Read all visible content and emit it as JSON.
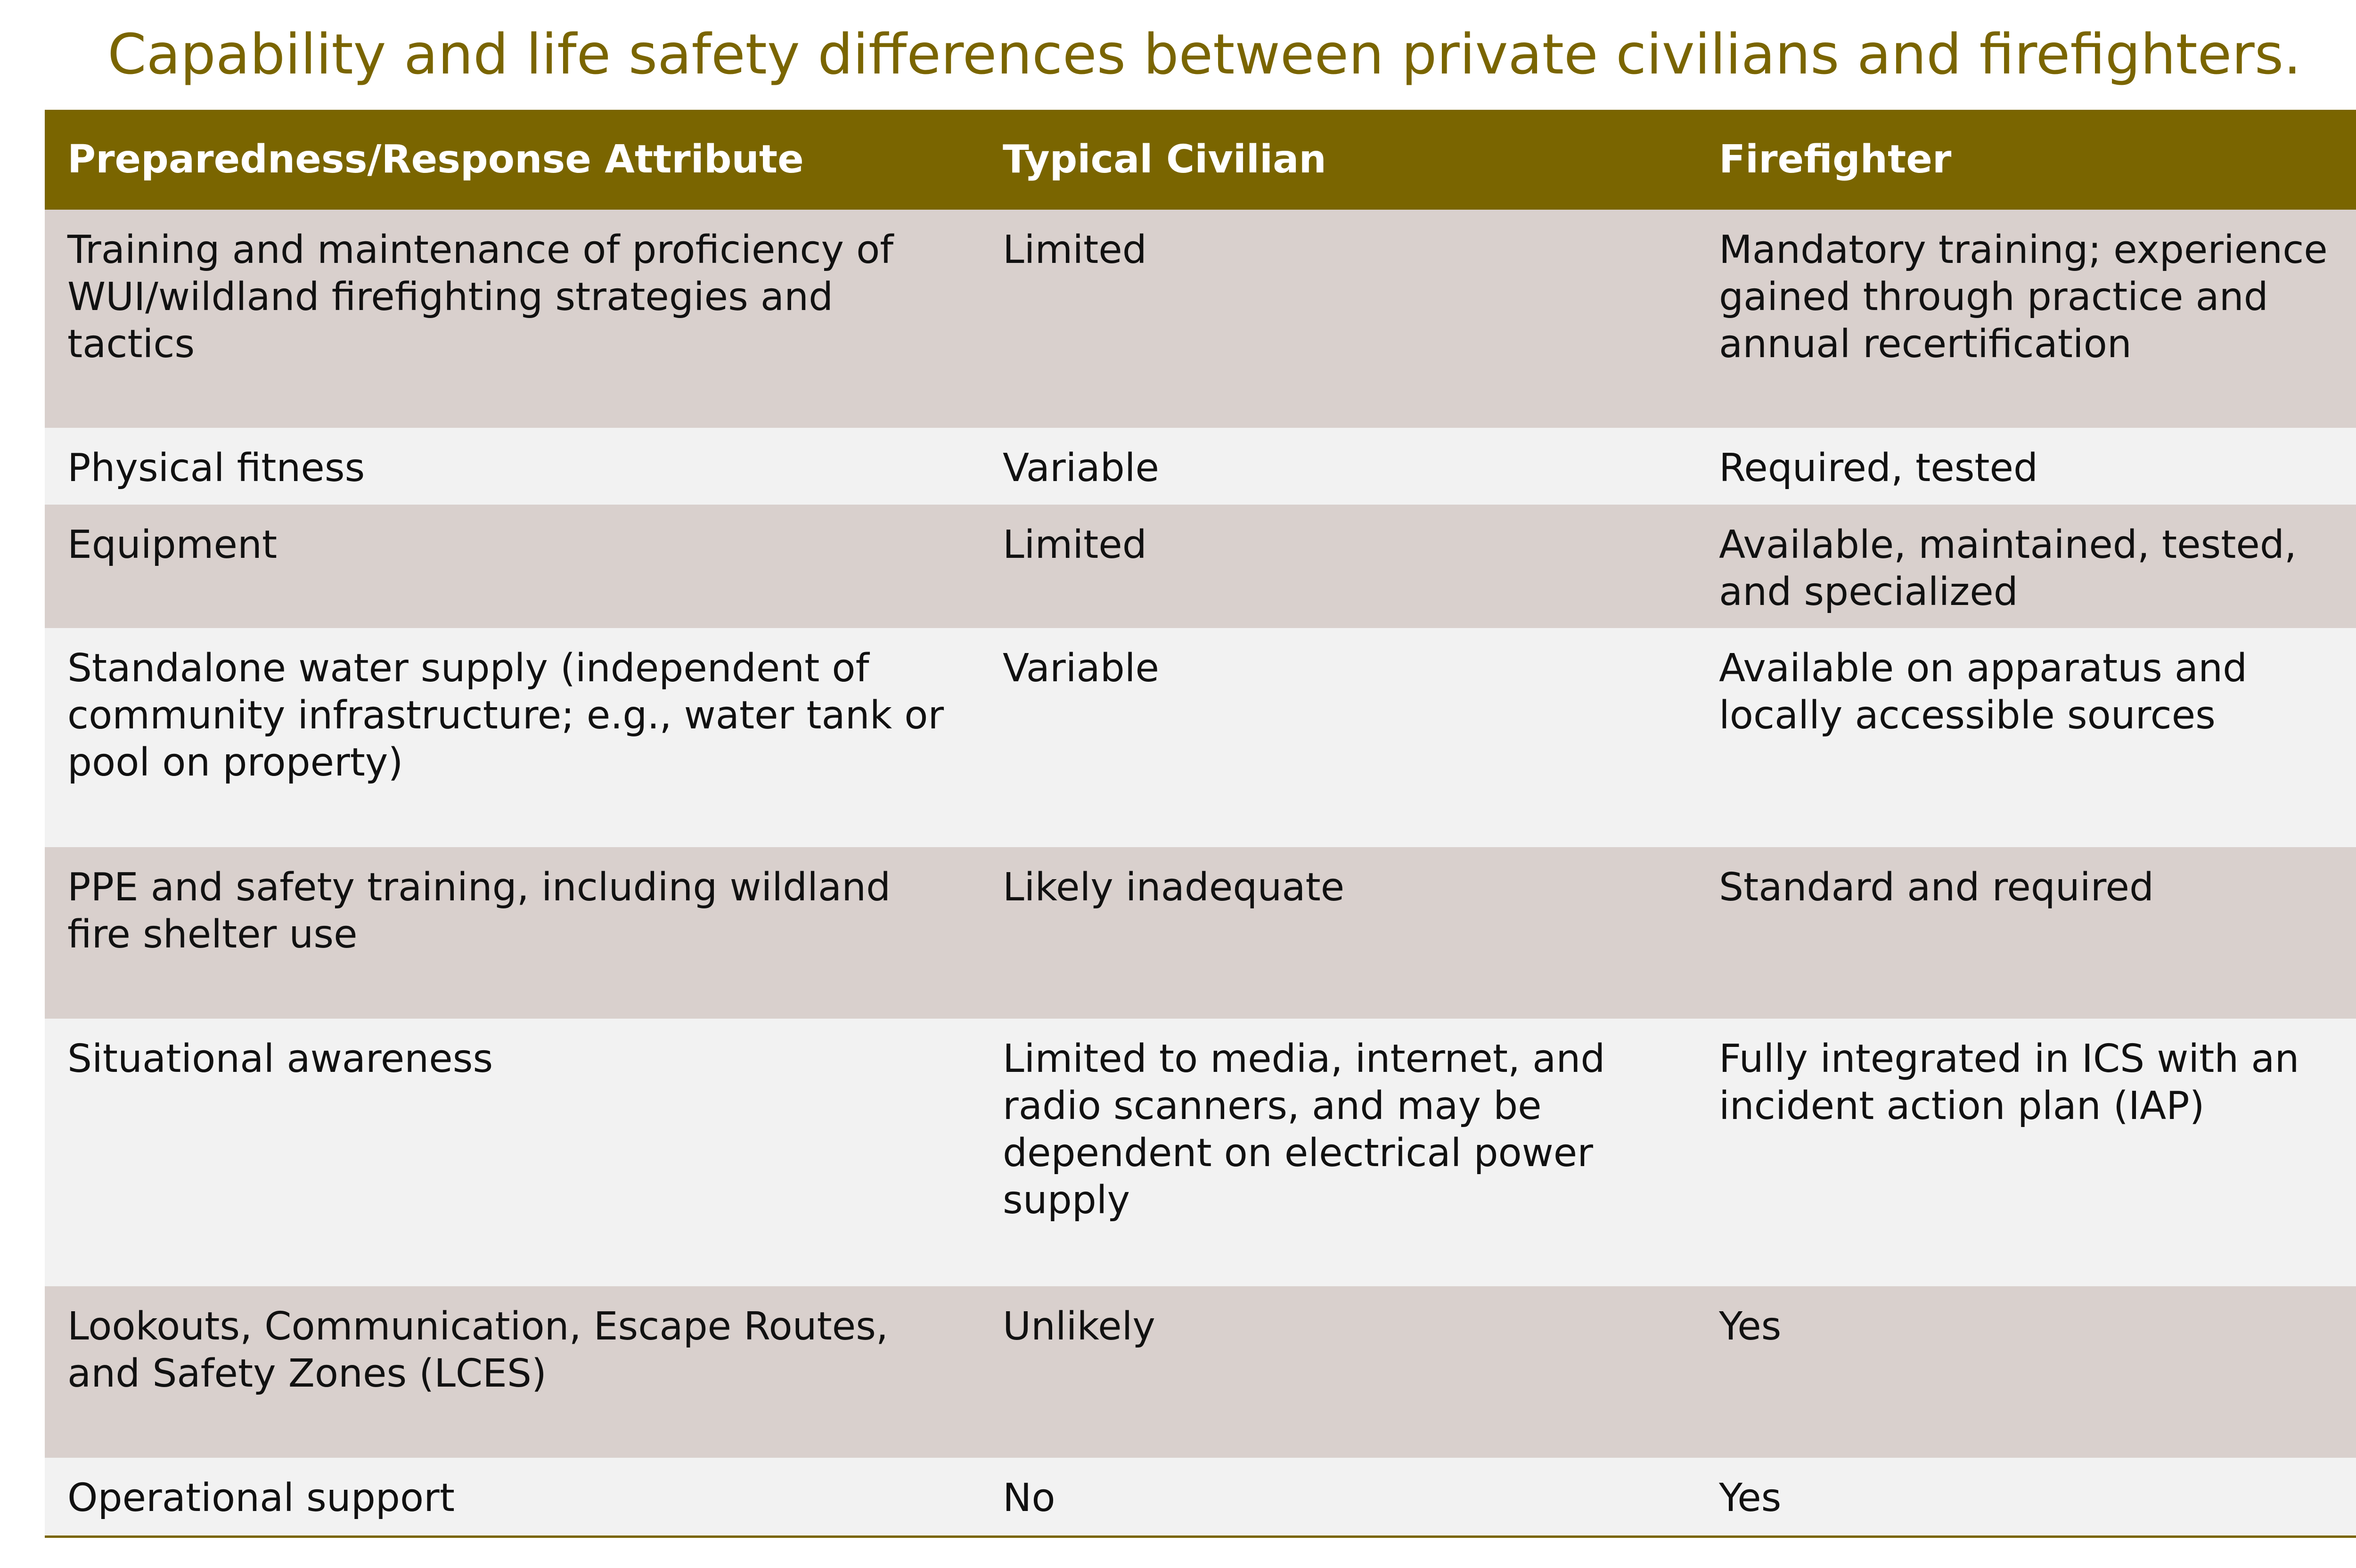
{
  "title": "Capability and life safety differences between private civilians and firefighters.",
  "table": {
    "headers": [
      "Preparedness/Response Attribute",
      "Typical Civilian",
      "Firefighter"
    ],
    "rows": [
      [
        "Training and maintenance of proficiency of WUI/wildland firefighting strategies and tactics",
        "Limited",
        "Mandatory training; experience gained through practice and annual recertification"
      ],
      [
        "Physical fitness",
        "Variable",
        "Required, tested"
      ],
      [
        "Equipment",
        "Limited",
        "Available, maintained, tested, and specialized"
      ],
      [
        "Standalone water supply (independent of community infrastructure; e.g., water tank or pool on property)",
        "Variable",
        "Available on apparatus and locally accessible sources"
      ],
      [
        "PPE and safety training, including wildland fire shelter use",
        "Likely inadequate",
        "Standard and required"
      ],
      [
        "Situational awareness",
        "Limited to media, internet, and radio scanners, and may be dependent on electrical power supply",
        "Fully integrated in ICS with an incident action plan (IAP)"
      ],
      [
        "Lookouts, Communication, Escape Routes, and Safety Zones (LCES)",
        "Unlikely",
        "Yes"
      ],
      [
        "Operational support",
        "No",
        "Yes"
      ]
    ]
  },
  "colors": {
    "accent": "#7a6500",
    "row_dark": "#d9d0cd",
    "row_light": "#f2f2f2"
  }
}
